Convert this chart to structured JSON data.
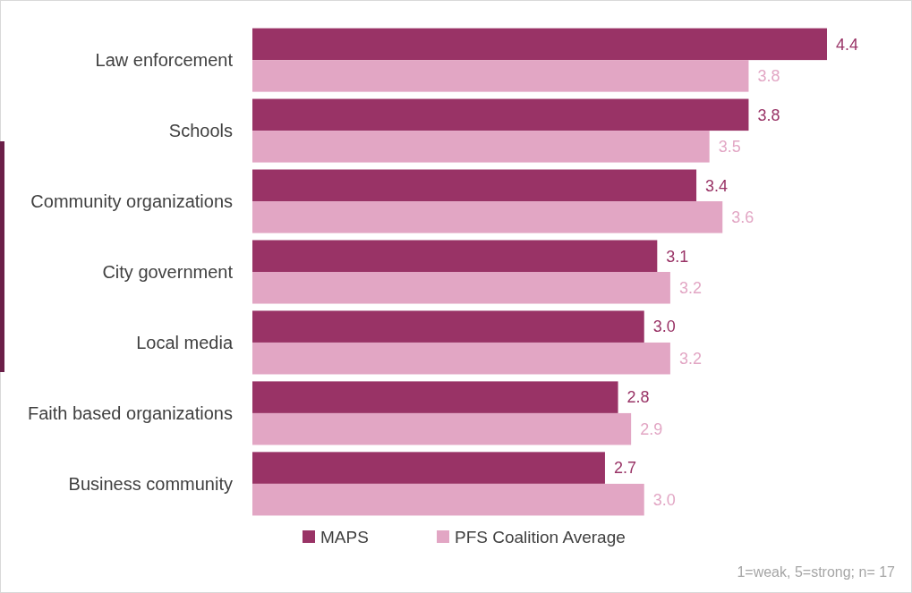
{
  "chart_data": {
    "type": "bar",
    "orientation": "horizontal",
    "categories": [
      "Law enforcement",
      "Schools",
      "Community organizations",
      "City government",
      "Local media",
      "Faith based organizations",
      "Business community"
    ],
    "series": [
      {
        "name": "MAPS",
        "color": "#993366",
        "values": [
          4.4,
          3.8,
          3.4,
          3.1,
          3.0,
          2.8,
          2.7
        ],
        "value_labels": [
          "4.4",
          "3.8",
          "3.4",
          "3.1",
          "3.0",
          "2.8",
          "2.7"
        ]
      },
      {
        "name": "PFS Coalition Average",
        "color": "#e2a6c4",
        "values": [
          3.8,
          3.5,
          3.6,
          3.2,
          3.2,
          2.9,
          3.0
        ],
        "value_labels": [
          "3.8",
          "3.5",
          "3.6",
          "3.2",
          "3.2",
          "2.9",
          "3.0"
        ]
      }
    ],
    "legend": "bottom",
    "annotations": [
      "1=weak, 5=strong; n= 17"
    ]
  }
}
